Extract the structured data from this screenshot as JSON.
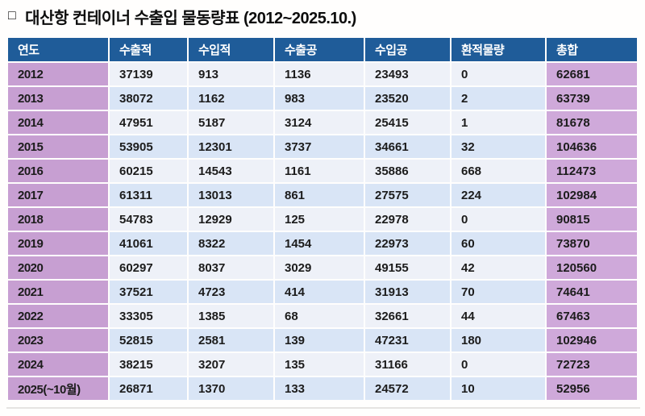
{
  "title": {
    "bullet": "□",
    "text": "대산항 컨테이너 수출입 물동량표 (2012~2025.10.)"
  },
  "colors": {
    "header_bg": "#1f5c99",
    "header_text": "#ffffff",
    "year_col_bg": "#c79fd2",
    "total_col_bg": "#cfa9da",
    "row_light_bg": "#eef1f8",
    "row_blue_bg": "#d9e5f6",
    "body_text": "#1c1c1c"
  },
  "table": {
    "columns": [
      "연도",
      "수출적",
      "수입적",
      "수출공",
      "수입공",
      "환적물량",
      "총합"
    ],
    "rows": [
      [
        "2012",
        "37139",
        "913",
        "1136",
        "23493",
        "0",
        "62681"
      ],
      [
        "2013",
        "38072",
        "1162",
        "983",
        "23520",
        "2",
        "63739"
      ],
      [
        "2014",
        "47951",
        "5187",
        "3124",
        "25415",
        "1",
        "81678"
      ],
      [
        "2015",
        "53905",
        "12301",
        "3737",
        "34661",
        "32",
        "104636"
      ],
      [
        "2016",
        "60215",
        "14543",
        "1161",
        "35886",
        "668",
        "112473"
      ],
      [
        "2017",
        "61311",
        "13013",
        "861",
        "27575",
        "224",
        "102984"
      ],
      [
        "2018",
        "54783",
        "12929",
        "125",
        "22978",
        "0",
        "90815"
      ],
      [
        "2019",
        "41061",
        "8322",
        "1454",
        "22973",
        "60",
        "73870"
      ],
      [
        "2020",
        "60297",
        "8037",
        "3029",
        "49155",
        "42",
        "120560"
      ],
      [
        "2021",
        "37521",
        "4723",
        "414",
        "31913",
        "70",
        "74641"
      ],
      [
        "2022",
        "33305",
        "1385",
        "68",
        "32661",
        "44",
        "67463"
      ],
      [
        "2023",
        "52815",
        "2581",
        "139",
        "47231",
        "180",
        "102946"
      ],
      [
        "2024",
        "38215",
        "3207",
        "135",
        "31166",
        "0",
        "72723"
      ],
      [
        "2025(~10월)",
        "26871",
        "1370",
        "133",
        "24572",
        "10",
        "52956"
      ]
    ]
  }
}
